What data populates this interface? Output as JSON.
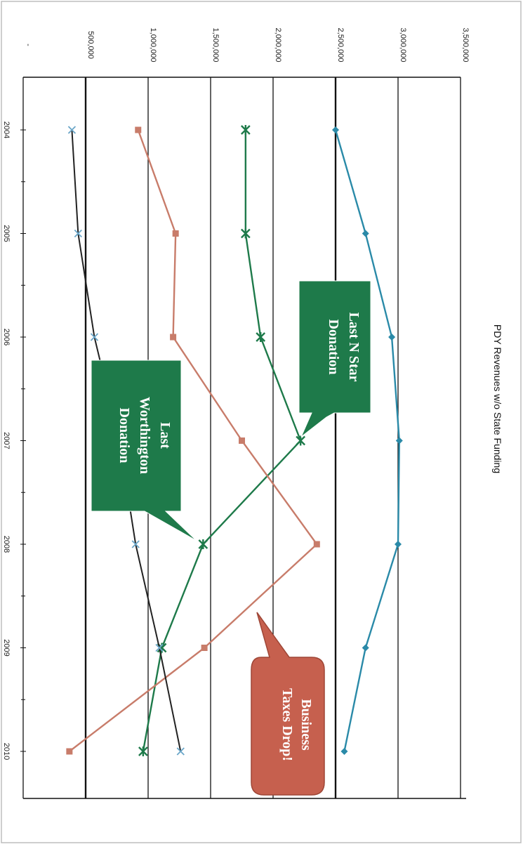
{
  "chart_data": {
    "type": "line",
    "title": "PDY Revenues w/o State Funding",
    "xlabel": "",
    "ylabel": "",
    "categories": [
      "2004",
      "2005",
      "2006",
      "2007",
      "2008",
      "2009",
      "2010"
    ],
    "y_tick_labels": [
      "-",
      "500,000",
      "1,000,000",
      "1,500,000",
      "2,000,000",
      "2,500,000",
      "3,000,000",
      "3,500,000"
    ],
    "ylim": [
      0,
      3500000
    ],
    "grid": "major gridlines, rotated page",
    "series": [
      {
        "values": [
          2500000,
          2740000,
          2950000,
          3010000,
          3000000,
          2740000,
          2570000
        ],
        "color": "#2a8aa8",
        "marker": "diamond"
      },
      {
        "values": [
          1780000,
          1780000,
          1900000,
          2220000,
          1440000,
          1110000,
          960000
        ],
        "color": "#1e7a4a",
        "marker": "star"
      },
      {
        "values": [
          920000,
          1220000,
          1200000,
          1750000,
          2350000,
          1450000,
          370000
        ],
        "color": "#c87c6a",
        "marker": "square"
      },
      {
        "values": [
          390000,
          440000,
          570000,
          770000,
          900000,
          1090000,
          1260000
        ],
        "color": "#222222",
        "marker": "x"
      }
    ],
    "annotations": [
      {
        "id": "nstar",
        "text_lines": [
          "Last N Star",
          "Donation"
        ],
        "color": "#1e7a4a"
      },
      {
        "id": "worthington",
        "text_lines": [
          "Last",
          "Worthington",
          "Donation"
        ],
        "color": "#1e7a4a"
      },
      {
        "id": "business",
        "text_lines": [
          "Business",
          "Taxes Drop!"
        ],
        "color": "#c6604e"
      }
    ]
  }
}
